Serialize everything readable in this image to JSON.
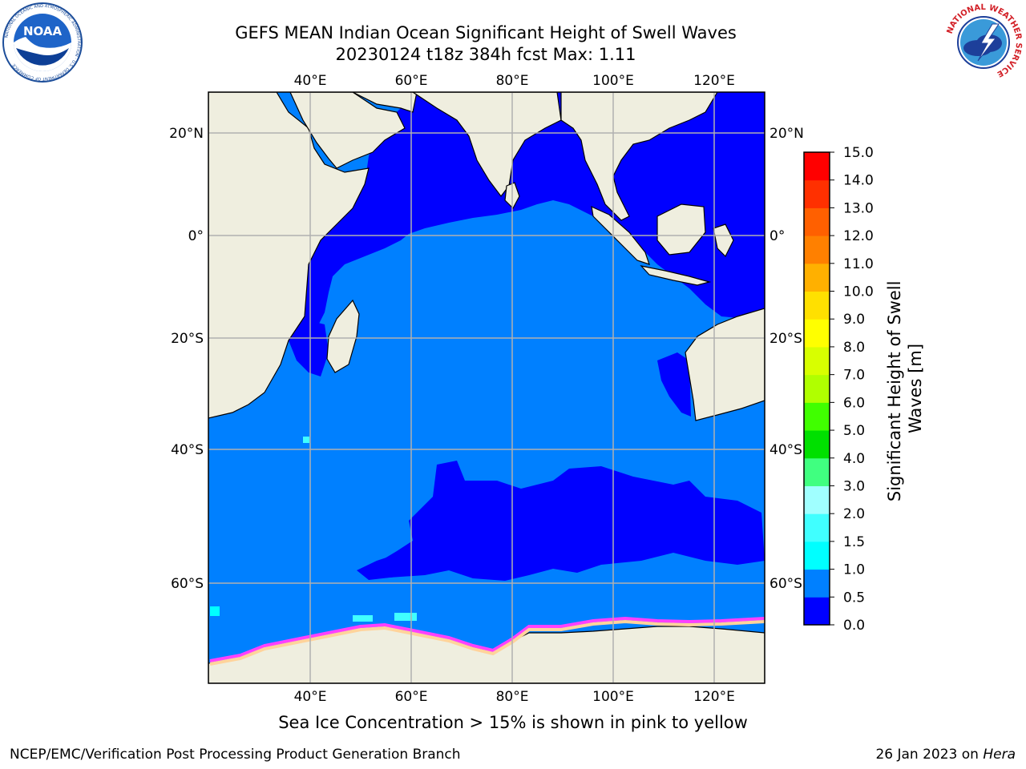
{
  "header": {
    "title_line1": "GEFS MEAN Indian Ocean Significant Height of Swell Waves",
    "title_line2": "20230124 t18z 384h fcst   Max: 1.11"
  },
  "logos": {
    "left": {
      "icon": "noaa-logo-icon",
      "text": "NOAA",
      "ring_text": "NATIONAL OCEANIC AND ATMOSPHERIC ADMINISTRATION · U.S. DEPARTMENT OF COMMERCE"
    },
    "right": {
      "icon": "nws-logo-icon",
      "ring_text": "NATIONAL WEATHER SERVICE"
    }
  },
  "map": {
    "longitude_ticks": [
      "40°E",
      "60°E",
      "80°E",
      "100°E",
      "120°E"
    ],
    "latitude_ticks_left": [
      "20°N",
      "0°",
      "20°S",
      "40°S",
      "60°S"
    ],
    "latitude_ticks_right": [
      "20°N",
      "0°",
      "20°S",
      "40°S",
      "60°S"
    ],
    "grid": true,
    "colors": {
      "land": "#efeedf",
      "ocean_0_0_5": "#0000ff",
      "ocean_0_5_1_0": "#0080ff",
      "ocean_1_0_1_5": "#00ffff",
      "sea_ice_low": "#ff40ff",
      "sea_ice_high": "#ffd39b",
      "grid": "#b0b0b0"
    }
  },
  "colorbar": {
    "title_line1": "Significant Height of Swell",
    "title_line2": "Waves [m]",
    "ticks": [
      "0.0",
      "0.5",
      "1.0",
      "1.5",
      "2.0",
      "3.0",
      "4.0",
      "5.0",
      "6.0",
      "7.0",
      "8.0",
      "9.0",
      "10.0",
      "11.0",
      "12.0",
      "13.0",
      "14.0",
      "15.0"
    ],
    "bins": [
      {
        "color": "#0000ff"
      },
      {
        "color": "#0080ff"
      },
      {
        "color": "#00ffff"
      },
      {
        "color": "#40ffff"
      },
      {
        "color": "#a0ffff"
      },
      {
        "color": "#40ff80"
      },
      {
        "color": "#00e000"
      },
      {
        "color": "#40ff00"
      },
      {
        "color": "#b0ff00"
      },
      {
        "color": "#d8ff00"
      },
      {
        "color": "#ffff00"
      },
      {
        "color": "#ffe000"
      },
      {
        "color": "#ffb000"
      },
      {
        "color": "#ff8000"
      },
      {
        "color": "#ff6000"
      },
      {
        "color": "#ff3000"
      },
      {
        "color": "#ff0000"
      }
    ]
  },
  "footer": {
    "ice_note": "Sea Ice Concentration > 15% is shown in pink to yellow",
    "left": "NCEP/EMC/Verification Post Processing Product Generation Branch",
    "right_date": "26 Jan 2023 on",
    "right_machine": "Hera"
  }
}
